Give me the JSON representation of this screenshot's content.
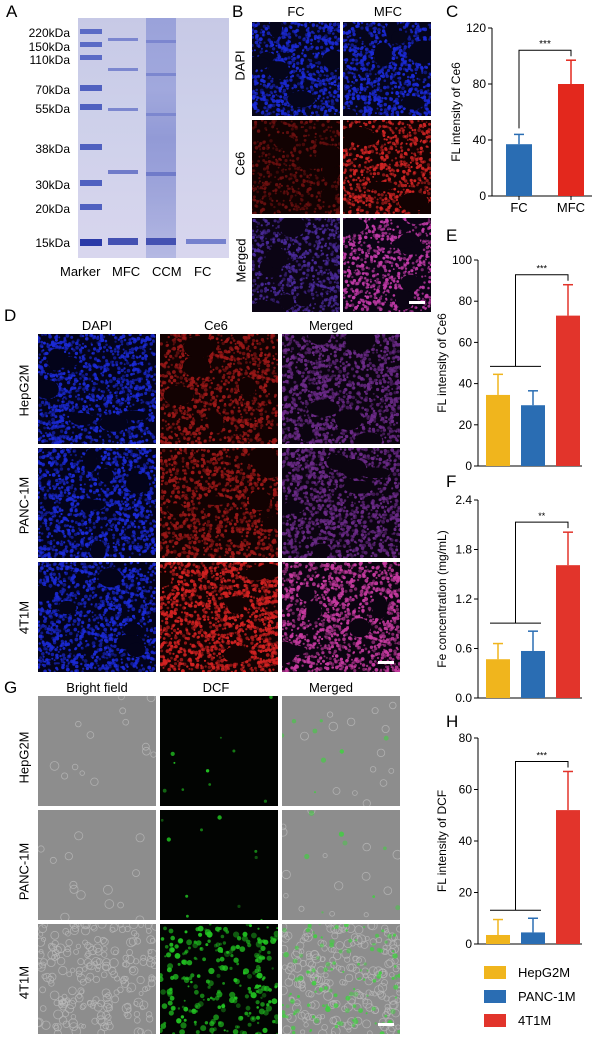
{
  "panels": {
    "A": {
      "label": "A",
      "mw_markers": [
        "220kDa",
        "150kDa",
        "110kDa",
        "70kDa",
        "55kDa",
        "38kDa",
        "30kDa",
        "20kDa",
        "15kDa"
      ],
      "lanes": [
        "Marker",
        "MFC",
        "CCM",
        "FC"
      ]
    },
    "B": {
      "label": "B",
      "columns": [
        "FC",
        "MFC"
      ],
      "rows": [
        "DAPI",
        "Ce6",
        "Merged"
      ]
    },
    "D": {
      "label": "D",
      "columns": [
        "DAPI",
        "Ce6",
        "Merged"
      ],
      "rows": [
        "HepG2M",
        "PANC-1M",
        "4T1M"
      ]
    },
    "G": {
      "label": "G",
      "columns": [
        "Bright field",
        "DCF",
        "Merged"
      ],
      "rows": [
        "HepG2M",
        "PANC-1M",
        "4T1M"
      ]
    }
  },
  "colors": {
    "fc_blue": "#2a6db3",
    "mfc_red": "#e3281d",
    "hepg2m": "#f0b51d",
    "panc1m": "#2a6db3",
    "t41m": "#e2342b",
    "dapi": "#1b2ad6",
    "ce6": "#b51818",
    "dcf": "#22c822"
  },
  "legend": [
    {
      "name": "HepG2M",
      "color": "#f0b51d"
    },
    {
      "name": "PANC-1M",
      "color": "#2a6db3"
    },
    {
      "name": "4T1M",
      "color": "#e2342b"
    }
  ],
  "chart_data": [
    {
      "panel": "C",
      "type": "bar",
      "categories": [
        "FC",
        "MFC"
      ],
      "values": [
        37,
        80
      ],
      "errors": [
        7,
        17
      ],
      "colors": [
        "#2a6db3",
        "#e3281d"
      ],
      "ylabel": "FL intensity of Ce6",
      "ylim": [
        0,
        120
      ],
      "yticks": [
        0,
        40,
        80,
        120
      ],
      "significance": "***"
    },
    {
      "panel": "E",
      "type": "bar",
      "categories": [
        "HepG2M",
        "PANC-1M",
        "4T1M"
      ],
      "values": [
        34.5,
        29.5,
        73
      ],
      "errors": [
        10,
        7,
        15
      ],
      "colors": [
        "#f0b51d",
        "#2a6db3",
        "#e2342b"
      ],
      "ylabel": "FL intensity of Ce6",
      "ylim": [
        0,
        100
      ],
      "yticks": [
        0,
        20,
        40,
        60,
        80,
        100
      ],
      "significance": "***"
    },
    {
      "panel": "F",
      "type": "bar",
      "categories": [
        "HepG2M",
        "PANC-1M",
        "4T1M"
      ],
      "values": [
        0.47,
        0.57,
        1.61
      ],
      "errors": [
        0.19,
        0.24,
        0.4
      ],
      "colors": [
        "#f0b51d",
        "#2a6db3",
        "#e2342b"
      ],
      "ylabel": "Fe concentration (mg/mL)",
      "ylim": [
        0,
        2.4
      ],
      "yticks": [
        "0.0",
        "0.6",
        "1.2",
        "1.8",
        "2.4"
      ],
      "significance": "**"
    },
    {
      "panel": "H",
      "type": "bar",
      "categories": [
        "HepG2M",
        "PANC-1M",
        "4T1M"
      ],
      "values": [
        3.5,
        4.5,
        52
      ],
      "errors": [
        6,
        5.5,
        15
      ],
      "colors": [
        "#f0b51d",
        "#2a6db3",
        "#e2342b"
      ],
      "ylabel": "FL intensity of DCF",
      "ylim": [
        0,
        80
      ],
      "yticks": [
        0,
        20,
        40,
        60,
        80
      ],
      "significance": "***"
    }
  ]
}
